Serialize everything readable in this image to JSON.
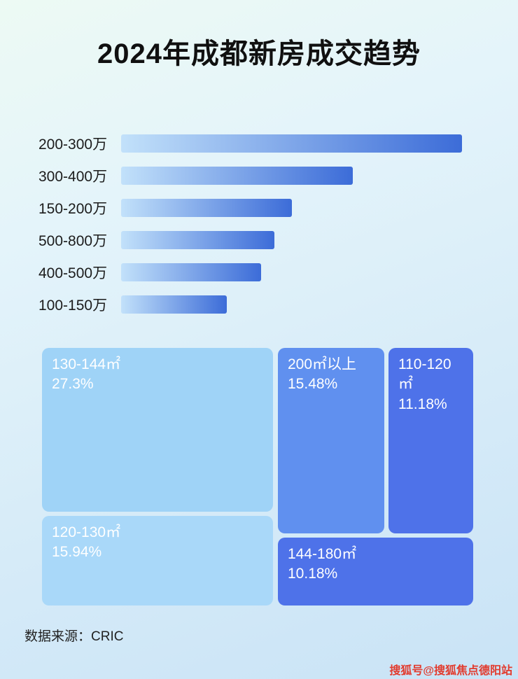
{
  "title": "2024年成都新房成交趋势",
  "chart_data": [
    {
      "type": "bar",
      "orientation": "horizontal",
      "title": "2024年成都新房成交趋势",
      "xlabel": "",
      "ylabel": "",
      "grid": false,
      "legend": false,
      "categories": [
        "200-300万",
        "300-400万",
        "150-200万",
        "500-800万",
        "400-500万",
        "100-150万"
      ],
      "values": [
        100,
        68,
        50,
        45,
        41,
        31
      ],
      "values_unit": "relative length, percent of longest bar (no numeric axis shown)",
      "bar_gradient": [
        "#c2e1fa",
        "#3c6cd8"
      ]
    },
    {
      "type": "treemap",
      "items": [
        {
          "label": "130-144㎡",
          "value": 27.3,
          "value_text": "27.3%",
          "color": "#9fd3f7"
        },
        {
          "label": "120-130㎡",
          "value": 15.94,
          "value_text": "15.94%",
          "color": "#a9d8f9"
        },
        {
          "label": "200㎡以上",
          "value": 15.48,
          "value_text": "15.48%",
          "color": "#6090ef"
        },
        {
          "label": "110-120㎡",
          "value": 11.18,
          "value_text": "11.18%",
          "color": "#4e72e9"
        },
        {
          "label": "144-180㎡",
          "value": 10.18,
          "value_text": "10.18%",
          "color": "#4e72e9"
        }
      ]
    }
  ],
  "footer": {
    "source": "数据来源：CRIC"
  },
  "watermark": {
    "text": "搜狐号@搜狐焦点德阳站",
    "color": "#e23b2e"
  }
}
